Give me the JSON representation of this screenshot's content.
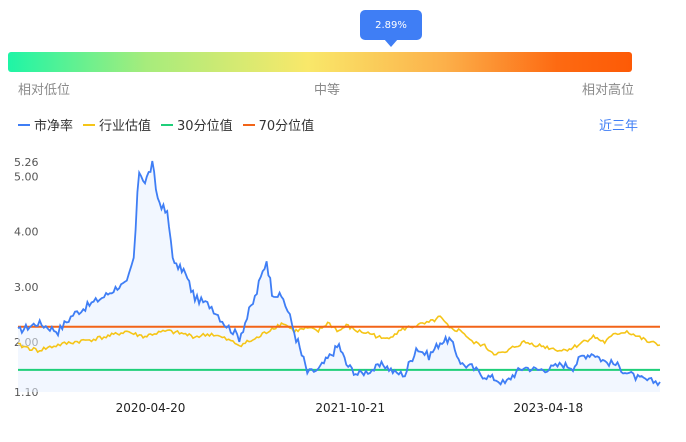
{
  "gauge": {
    "percentile_label": "2.89%",
    "percentile": 2.89,
    "low_label": "相对低位",
    "mid_label": "中等",
    "high_label": "相对高位"
  },
  "range_link": "近三年",
  "colors": {
    "pb": "#3f7ef5",
    "industry": "#f5c518",
    "p30": "#1fcf7a",
    "p70": "#f26418",
    "fill": "#e8f1ff"
  },
  "chart_data": {
    "type": "line",
    "series": [
      {
        "name": "市净率",
        "key": "pb"
      },
      {
        "name": "行业估值",
        "key": "industry"
      },
      {
        "name": "30分位值",
        "key": "p30"
      },
      {
        "name": "70分位值",
        "key": "p70"
      }
    ],
    "y_ticks": [
      "5.26",
      "5.00",
      "4.00",
      "3.00",
      "2.00",
      "1.10"
    ],
    "y_tick_values": [
      5.26,
      5.0,
      4.0,
      3.0,
      2.0,
      1.1
    ],
    "ylim": [
      1.1,
      5.26
    ],
    "x_ticks": [
      "2020-04-20",
      "2021-10-21",
      "2023-04-18"
    ],
    "xlim": [
      "2019-04-22",
      "2024-02-19"
    ],
    "grid": false,
    "legend": "top-left",
    "p30_value": 1.5,
    "p70_value": 2.28,
    "pb_points": [
      [
        "2019-04-22",
        2.2
      ],
      [
        "2019-06-15",
        2.35
      ],
      [
        "2019-08-10",
        2.2
      ],
      [
        "2019-09-20",
        2.5
      ],
      [
        "2019-11-10",
        2.7
      ],
      [
        "2019-12-20",
        2.85
      ],
      [
        "2020-01-20",
        3.0
      ],
      [
        "2020-02-15",
        3.05
      ],
      [
        "2020-03-05",
        3.5
      ],
      [
        "2020-03-20",
        5.1
      ],
      [
        "2020-04-05",
        4.9
      ],
      [
        "2020-04-25",
        5.2
      ],
      [
        "2020-05-10",
        4.6
      ],
      [
        "2020-06-05",
        4.3
      ],
      [
        "2020-06-25",
        3.4
      ],
      [
        "2020-07-20",
        3.3
      ],
      [
        "2020-08-20",
        2.8
      ],
      [
        "2020-10-05",
        2.65
      ],
      [
        "2020-11-15",
        2.3
      ],
      [
        "2020-12-20",
        2.1
      ],
      [
        "2021-02-01",
        2.8
      ],
      [
        "2021-03-05",
        3.5
      ],
      [
        "2021-03-20",
        2.9
      ],
      [
        "2021-04-20",
        2.8
      ],
      [
        "2021-05-20",
        2.2
      ],
      [
        "2021-06-25",
        1.45
      ],
      [
        "2021-07-25",
        1.5
      ],
      [
        "2021-08-20",
        1.7
      ],
      [
        "2021-09-20",
        1.95
      ],
      [
        "2021-10-10",
        1.6
      ],
      [
        "2021-11-10",
        1.42
      ],
      [
        "2021-12-20",
        1.5
      ],
      [
        "2022-01-20",
        1.6
      ],
      [
        "2022-02-20",
        1.45
      ],
      [
        "2022-03-20",
        1.42
      ],
      [
        "2022-04-20",
        1.9
      ],
      [
        "2022-05-25",
        1.75
      ],
      [
        "2022-06-25",
        2.0
      ],
      [
        "2022-07-20",
        2.05
      ],
      [
        "2022-08-25",
        1.6
      ],
      [
        "2022-09-20",
        1.55
      ],
      [
        "2022-10-20",
        1.4
      ],
      [
        "2022-11-20",
        1.35
      ],
      [
        "2022-12-20",
        1.25
      ],
      [
        "2023-01-10",
        1.4
      ],
      [
        "2023-02-10",
        1.55
      ],
      [
        "2023-03-20",
        1.5
      ],
      [
        "2023-04-20",
        1.52
      ],
      [
        "2023-05-25",
        1.6
      ],
      [
        "2023-06-25",
        1.55
      ],
      [
        "2023-07-20",
        1.75
      ],
      [
        "2023-08-20",
        1.8
      ],
      [
        "2023-09-20",
        1.65
      ],
      [
        "2023-10-20",
        1.6
      ],
      [
        "2023-11-20",
        1.45
      ],
      [
        "2023-12-20",
        1.35
      ],
      [
        "2024-01-20",
        1.3
      ],
      [
        "2024-02-19",
        1.28
      ]
    ],
    "industry_points": [
      [
        "2019-04-22",
        1.95
      ],
      [
        "2019-06-15",
        1.85
      ],
      [
        "2019-08-10",
        1.95
      ],
      [
        "2019-09-20",
        2.0
      ],
      [
        "2019-11-10",
        2.05
      ],
      [
        "2019-12-20",
        2.1
      ],
      [
        "2020-01-20",
        2.15
      ],
      [
        "2020-02-15",
        2.2
      ],
      [
        "2020-03-05",
        2.15
      ],
      [
        "2020-04-05",
        2.1
      ],
      [
        "2020-04-25",
        2.15
      ],
      [
        "2020-06-05",
        2.2
      ],
      [
        "2020-07-20",
        2.15
      ],
      [
        "2020-08-20",
        2.1
      ],
      [
        "2020-10-05",
        2.15
      ],
      [
        "2020-11-15",
        2.05
      ],
      [
        "2020-12-20",
        1.95
      ],
      [
        "2021-02-01",
        2.05
      ],
      [
        "2021-03-20",
        2.25
      ],
      [
        "2021-04-20",
        2.35
      ],
      [
        "2021-05-20",
        2.2
      ],
      [
        "2021-06-25",
        2.25
      ],
      [
        "2021-07-25",
        2.2
      ],
      [
        "2021-08-20",
        2.35
      ],
      [
        "2021-09-20",
        2.2
      ],
      [
        "2021-10-10",
        2.3
      ],
      [
        "2021-11-10",
        2.2
      ],
      [
        "2021-12-20",
        2.15
      ],
      [
        "2022-01-20",
        2.05
      ],
      [
        "2022-02-20",
        2.15
      ],
      [
        "2022-03-20",
        2.25
      ],
      [
        "2022-04-20",
        2.3
      ],
      [
        "2022-05-25",
        2.35
      ],
      [
        "2022-06-25",
        2.45
      ],
      [
        "2022-07-20",
        2.25
      ],
      [
        "2022-08-25",
        2.2
      ],
      [
        "2022-09-20",
        2.0
      ],
      [
        "2022-10-20",
        1.95
      ],
      [
        "2022-11-20",
        1.8
      ],
      [
        "2022-12-20",
        1.8
      ],
      [
        "2023-01-10",
        1.9
      ],
      [
        "2023-02-10",
        2.0
      ],
      [
        "2023-03-20",
        1.95
      ],
      [
        "2023-04-20",
        1.9
      ],
      [
        "2023-05-25",
        1.85
      ],
      [
        "2023-06-25",
        1.9
      ],
      [
        "2023-07-20",
        2.0
      ],
      [
        "2023-08-20",
        2.1
      ],
      [
        "2023-09-20",
        2.0
      ],
      [
        "2023-10-20",
        2.15
      ],
      [
        "2023-11-20",
        2.2
      ],
      [
        "2023-12-20",
        2.1
      ],
      [
        "2024-01-20",
        2.0
      ],
      [
        "2024-02-19",
        1.95
      ]
    ]
  }
}
